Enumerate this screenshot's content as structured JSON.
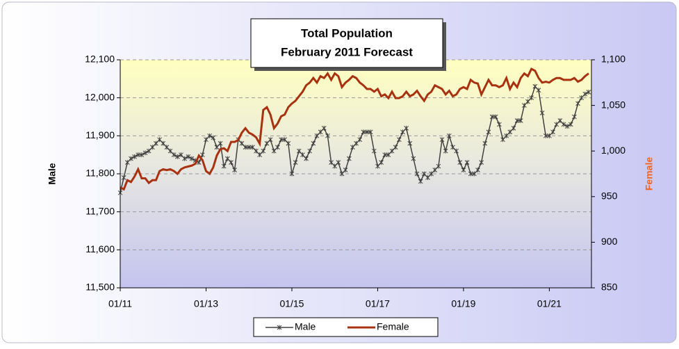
{
  "chart_data": {
    "type": "line",
    "title": "Total Population",
    "subtitle": "February 2011 Forecast",
    "y_label": "Male",
    "y2_label": "Female",
    "categories": [
      "01/11",
      null,
      null,
      null,
      null,
      null,
      null,
      null,
      null,
      null,
      null,
      null,
      null,
      null,
      null,
      null,
      null,
      null,
      null,
      null,
      null,
      null,
      null,
      null,
      "01/13",
      null,
      null,
      null,
      null,
      null,
      null,
      null,
      null,
      null,
      null,
      null,
      null,
      null,
      null,
      null,
      null,
      null,
      null,
      null,
      null,
      null,
      null,
      null,
      "01/15",
      null,
      null,
      null,
      null,
      null,
      null,
      null,
      null,
      null,
      null,
      null,
      null,
      null,
      null,
      null,
      null,
      null,
      null,
      null,
      null,
      null,
      null,
      null,
      "01/17",
      null,
      null,
      null,
      null,
      null,
      null,
      null,
      null,
      null,
      null,
      null,
      null,
      null,
      null,
      null,
      null,
      null,
      null,
      null,
      null,
      null,
      null,
      null,
      "01/19",
      null,
      null,
      null,
      null,
      null,
      null,
      null,
      null,
      null,
      null,
      null,
      null,
      null,
      null,
      null,
      null,
      null,
      null,
      null,
      null,
      null,
      null,
      null,
      "01/21",
      null,
      null,
      null,
      null,
      null,
      null,
      null,
      null,
      null,
      null,
      null
    ],
    "series": [
      {
        "name": "Male",
        "color": "#404040",
        "axis": "y",
        "values": [
          11750,
          11790,
          11830,
          11840,
          11845,
          11850,
          11850,
          11855,
          11860,
          11870,
          11880,
          11890,
          11880,
          11870,
          11860,
          11850,
          11845,
          11850,
          11840,
          11845,
          11840,
          11835,
          11830,
          11850,
          11890,
          11900,
          11895,
          11870,
          11880,
          11820,
          11840,
          11830,
          11810,
          11890,
          11880,
          11870,
          11870,
          11870,
          11860,
          11850,
          11860,
          11880,
          11890,
          11860,
          11870,
          11890,
          11890,
          11880,
          11800,
          11830,
          11860,
          11850,
          11840,
          11860,
          11880,
          11900,
          11910,
          11920,
          11900,
          11830,
          11820,
          11830,
          11800,
          11810,
          11840,
          11870,
          11880,
          11890,
          11910,
          11910,
          11910,
          11860,
          11820,
          11830,
          11850,
          11850,
          11860,
          11870,
          11890,
          11910,
          11920,
          11880,
          11840,
          11800,
          11780,
          11800,
          11790,
          11800,
          11810,
          11820,
          11890,
          11860,
          11900,
          11870,
          11860,
          11830,
          11810,
          11830,
          11800,
          11800,
          11810,
          11830,
          11880,
          11910,
          11950,
          11950,
          11930,
          11890,
          11900,
          11910,
          11920,
          11940,
          11940,
          11980,
          11990,
          12000,
          12030,
          12020,
          11960,
          11900,
          11900,
          11910,
          11930,
          11940,
          11930,
          11925,
          11930,
          11950,
          11985,
          12000,
          12010,
          12015
        ]
      },
      {
        "name": "Female",
        "color": "#a83210",
        "axis": "y2",
        "values": [
          960,
          958,
          968,
          966,
          972,
          980,
          970,
          970,
          965,
          968,
          968,
          978,
          980,
          979,
          980,
          978,
          975,
          980,
          982,
          983,
          984,
          986,
          995,
          990,
          978,
          975,
          982,
          995,
          1002,
          1003,
          1000,
          1010,
          1010,
          1012,
          1020,
          1025,
          1020,
          1018,
          1015,
          1008,
          1045,
          1048,
          1040,
          1025,
          1030,
          1038,
          1040,
          1048,
          1052,
          1055,
          1060,
          1065,
          1072,
          1075,
          1080,
          1075,
          1082,
          1080,
          1085,
          1078,
          1085,
          1082,
          1070,
          1075,
          1078,
          1082,
          1080,
          1075,
          1072,
          1068,
          1068,
          1065,
          1068,
          1060,
          1062,
          1058,
          1065,
          1058,
          1058,
          1060,
          1065,
          1060,
          1062,
          1066,
          1060,
          1055,
          1062,
          1065,
          1072,
          1070,
          1068,
          1062,
          1066,
          1060,
          1062,
          1068,
          1070,
          1068,
          1078,
          1075,
          1074,
          1062,
          1070,
          1078,
          1072,
          1072,
          1070,
          1072,
          1080,
          1068,
          1075,
          1070,
          1080,
          1085,
          1082,
          1090,
          1088,
          1080,
          1075,
          1076,
          1075,
          1078,
          1080,
          1080,
          1078,
          1078,
          1078,
          1080,
          1076,
          1078,
          1082,
          1085
        ]
      }
    ],
    "ylim": [
      11500,
      12100
    ],
    "yticks": [
      {
        "value": 11500,
        "label": "11,500"
      },
      {
        "value": 11600,
        "label": "11,600"
      },
      {
        "value": 11700,
        "label": "11,700"
      },
      {
        "value": 11800,
        "label": "11,800"
      },
      {
        "value": 11900,
        "label": "11,900"
      },
      {
        "value": 12000,
        "label": "12,000"
      },
      {
        "value": 12100,
        "label": "12,100"
      }
    ],
    "y2lim": [
      850,
      1100
    ],
    "y2ticks": [
      850,
      900,
      950,
      {
        "value": 1000,
        "label": "1,000"
      },
      {
        "value": 1050,
        "label": "1,050"
      },
      {
        "value": 1100,
        "label": "1,100"
      }
    ],
    "grid": true,
    "legend": "bottom"
  }
}
